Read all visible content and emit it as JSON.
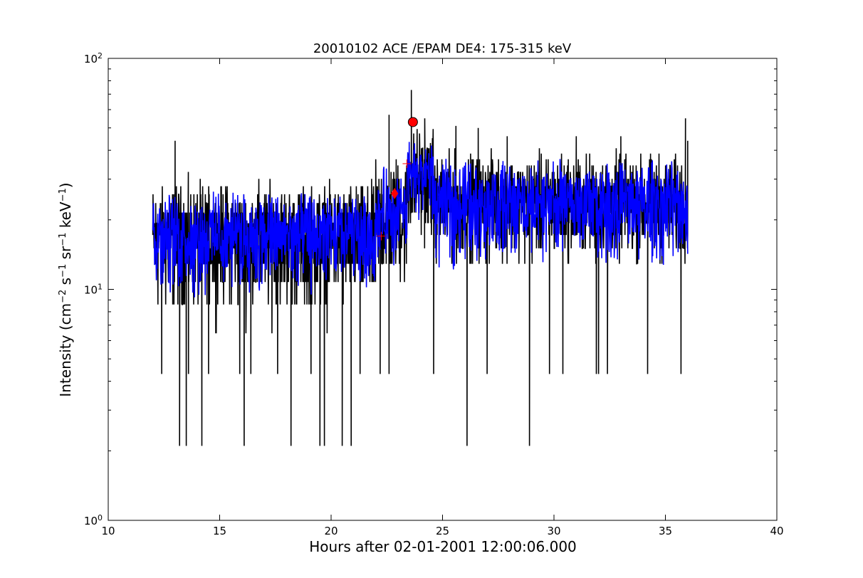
{
  "chart_data": {
    "type": "line",
    "title": "20010102 ACE /EPAM DE4: 175-315 keV",
    "xlabel": "Hours after 02-01-2001 12:00:06.000",
    "ylabel": "Intensity (cm$^{-2}$ s$^{-1}$ sr$^{-1}$ keV$^{-1}$)",
    "ylabel_parts": [
      "Intensity (cm",
      "−2",
      " s",
      "−1",
      " sr",
      "−1",
      " keV",
      "−1",
      ")"
    ],
    "xlim": [
      10,
      40
    ],
    "ylim": [
      1,
      100
    ],
    "yscale": "log",
    "grid": false,
    "xticks": [
      10,
      15,
      20,
      25,
      30,
      35,
      40
    ],
    "xtick_labels": [
      "10",
      "15",
      "20",
      "25",
      "30",
      "35",
      "40"
    ],
    "yticks": [
      1,
      10,
      100
    ],
    "ytick_labels": [
      {
        "base": "10",
        "exp": "0"
      },
      {
        "base": "10",
        "exp": "1"
      },
      {
        "base": "10",
        "exp": "2"
      }
    ],
    "series": [
      {
        "role": "raw intensity",
        "color": "#000000",
        "x_range": [
          12.0,
          36.0
        ],
        "baseline_segments": [
          {
            "x": [
              12.0,
              22.0
            ],
            "y_median": 17,
            "y_spread_low": 6.3,
            "y_spread_high": 34
          },
          {
            "x": [
              22.0,
              23.4
            ],
            "y_median": 20,
            "y_spread_low": 8.6,
            "y_spread_high": 47
          },
          {
            "x": [
              23.4,
              24.6
            ],
            "y_median": 30,
            "y_spread_low": 13,
            "y_spread_high": 60
          },
          {
            "x": [
              24.6,
              36.0
            ],
            "y_median": 24,
            "y_spread_low": 10.7,
            "y_spread_high": 45
          }
        ],
        "dips": [
          {
            "x": 13.2,
            "y": 2.1
          },
          {
            "x": 13.5,
            "y": 2.1
          },
          {
            "x": 14.2,
            "y": 2.1
          },
          {
            "x": 16.1,
            "y": 2.1
          },
          {
            "x": 18.2,
            "y": 2.1
          },
          {
            "x": 19.5,
            "y": 2.1
          },
          {
            "x": 19.7,
            "y": 2.1
          },
          {
            "x": 20.5,
            "y": 2.1
          },
          {
            "x": 20.9,
            "y": 2.1
          },
          {
            "x": 26.1,
            "y": 2.1
          },
          {
            "x": 28.9,
            "y": 2.1
          },
          {
            "x": 12.4,
            "y": 4.3
          },
          {
            "x": 13.6,
            "y": 4.3
          },
          {
            "x": 14.5,
            "y": 4.3
          },
          {
            "x": 15.9,
            "y": 4.3
          },
          {
            "x": 16.4,
            "y": 4.3
          },
          {
            "x": 17.6,
            "y": 4.3
          },
          {
            "x": 19.1,
            "y": 4.3
          },
          {
            "x": 21.3,
            "y": 4.3
          },
          {
            "x": 22.2,
            "y": 4.3
          },
          {
            "x": 22.6,
            "y": 4.3
          },
          {
            "x": 24.6,
            "y": 4.3
          },
          {
            "x": 27.0,
            "y": 4.3
          },
          {
            "x": 29.8,
            "y": 4.3
          },
          {
            "x": 30.4,
            "y": 4.3
          },
          {
            "x": 31.9,
            "y": 4.3
          },
          {
            "x": 32.0,
            "y": 4.3
          },
          {
            "x": 32.4,
            "y": 4.3
          },
          {
            "x": 34.2,
            "y": 4.3
          },
          {
            "x": 35.7,
            "y": 4.3
          }
        ],
        "spikes": [
          {
            "x": 23.6,
            "y": 73
          },
          {
            "x": 22.6,
            "y": 57
          },
          {
            "x": 24.2,
            "y": 55
          },
          {
            "x": 25.6,
            "y": 51
          },
          {
            "x": 26.6,
            "y": 50
          },
          {
            "x": 35.9,
            "y": 55
          },
          {
            "x": 27.9,
            "y": 46
          },
          {
            "x": 31.0,
            "y": 46
          },
          {
            "x": 33.0,
            "y": 46
          },
          {
            "x": 36.0,
            "y": 44
          },
          {
            "x": 13.0,
            "y": 44
          }
        ]
      },
      {
        "role": "smoothed intensity",
        "color": "#0000ff",
        "x_range": [
          12.0,
          36.0
        ],
        "baseline_segments": [
          {
            "x": [
              12.0,
              22.0
            ],
            "y_median": 17.5,
            "y_spread_low": 9,
            "y_spread_high": 27
          },
          {
            "x": [
              22.0,
              23.4
            ],
            "y_median": 21,
            "y_spread_low": 12,
            "y_spread_high": 36
          },
          {
            "x": [
              23.4,
              24.6
            ],
            "y_median": 32,
            "y_spread_low": 18,
            "y_spread_high": 46
          },
          {
            "x": [
              24.6,
              36.0
            ],
            "y_median": 24,
            "y_spread_low": 12,
            "y_spread_high": 38
          }
        ]
      }
    ],
    "markers": [
      {
        "shape": "circle",
        "x": 23.67,
        "y": 53,
        "color": "#ff0000"
      },
      {
        "shape": "diamond",
        "x": 22.85,
        "y": 26,
        "color": "#ff0000"
      },
      {
        "shape": "plus",
        "x": 23.4,
        "y": 35,
        "color": "#ff0000"
      },
      {
        "shape": "plus",
        "x": 22.25,
        "y": 17,
        "color": "#ff0000"
      }
    ]
  }
}
